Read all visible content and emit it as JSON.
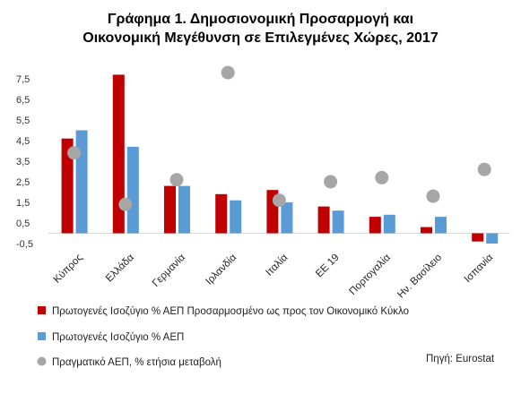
{
  "chart_data": {
    "type": "bar",
    "title_line1": "Γράφημα 1. Δημοσιονομική Προσαρμογή και",
    "title_line2": "Οικονομική Μεγέθυνση σε Επιλεγμένες Χώρες, 2017",
    "categories": [
      "Κύπρος",
      "Ελλάδα",
      "Γερμανία",
      "Ιρλανδία",
      "Ιταλία",
      "ΕΕ 19",
      "Πορτογαλία",
      "Ην. Βασίλειο",
      "Ισπανία"
    ],
    "series": [
      {
        "name": "Πρωτογενές Ισοζύγιο % ΑΕΠ Προσαρμοσμένο ως προς τον Οικονομικό Κύκλο",
        "kind": "bar",
        "color": "#C00000",
        "values": [
          4.6,
          7.7,
          2.3,
          1.9,
          2.1,
          1.3,
          0.8,
          0.3,
          -0.4
        ]
      },
      {
        "name": "Πρωτογενές Ισοζύγιο % ΑΕΠ",
        "kind": "bar",
        "color": "#5B9BD5",
        "values": [
          5.0,
          4.2,
          2.3,
          1.6,
          1.5,
          1.1,
          0.9,
          0.8,
          -0.5
        ]
      },
      {
        "name": "Πραγματικό ΑΕΠ, % ετήσια μεταβολή",
        "kind": "dot",
        "color": "#A6A6A6",
        "values": [
          3.9,
          1.4,
          2.6,
          7.8,
          1.6,
          2.5,
          2.7,
          1.8,
          3.1
        ]
      }
    ],
    "yticks": [
      "7,5",
      "6,5",
      "5,5",
      "4,5",
      "3,5",
      "2,5",
      "1,5",
      "0,5",
      "-0,5"
    ],
    "ytick_values": [
      7.5,
      6.5,
      5.5,
      4.5,
      3.5,
      2.5,
      1.5,
      0.5,
      -0.5
    ],
    "ylim": [
      -0.5,
      8
    ],
    "grid": false,
    "legend_position": "bottom-left",
    "source": "Πηγή: Eurostat"
  }
}
